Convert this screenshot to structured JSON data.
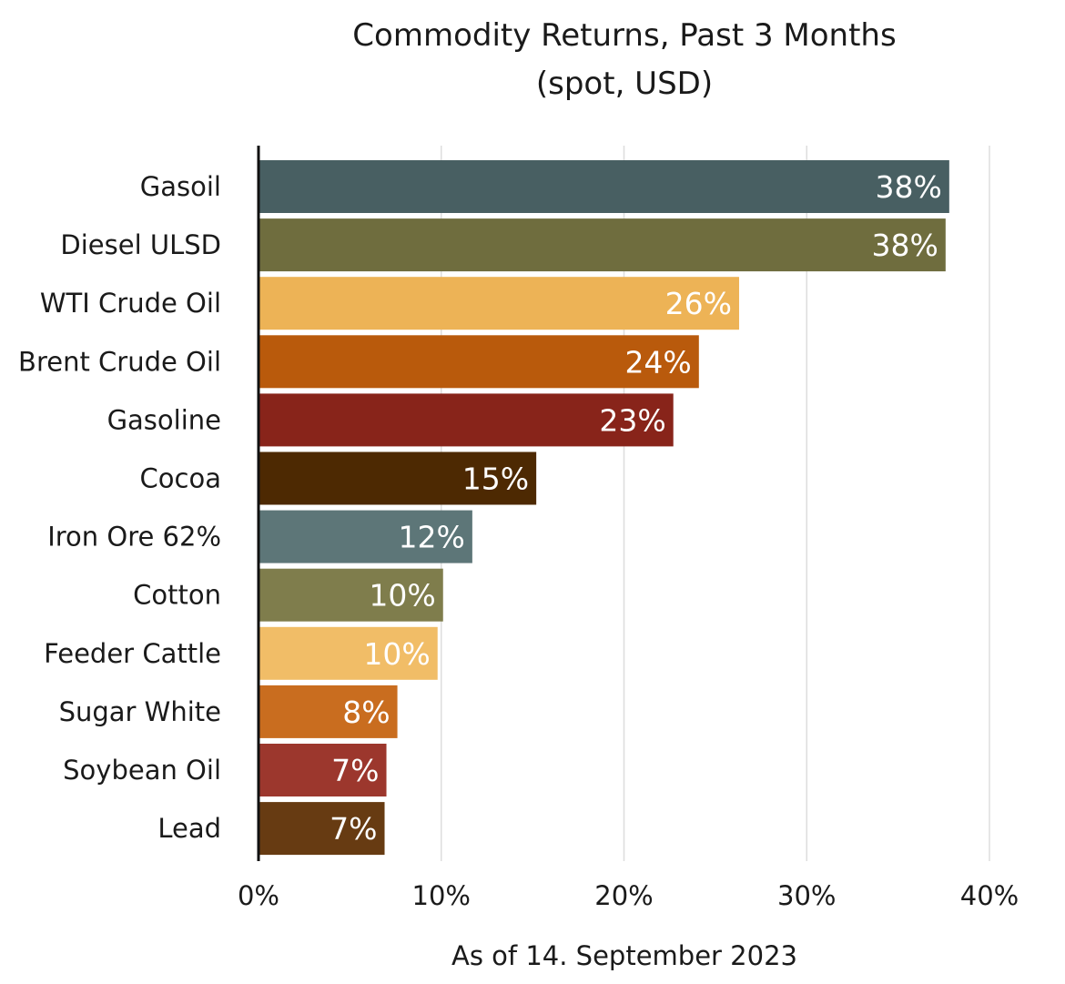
{
  "chart_data": {
    "type": "bar",
    "orientation": "horizontal",
    "title": "Commodity Returns, Past 3 Months",
    "subtitle": "(spot, USD)",
    "xlabel": "As of 14. September 2023",
    "xlim": [
      0,
      40
    ],
    "x_ticks": [
      0,
      10,
      20,
      30,
      40
    ],
    "x_tick_labels": [
      "0%",
      "10%",
      "20%",
      "30%",
      "40%"
    ],
    "grid": "vertical",
    "categories": [
      "Gasoil",
      "Diesel ULSD",
      "WTI Crude Oil",
      "Brent Crude Oil",
      "Gasoline",
      "Cocoa",
      "Iron Ore 62%",
      "Cotton",
      "Feeder Cattle",
      "Sugar White",
      "Soybean Oil",
      "Lead"
    ],
    "values": [
      37.8,
      37.6,
      26.3,
      24.1,
      22.7,
      15.2,
      11.7,
      10.1,
      9.8,
      7.6,
      7.0,
      6.9
    ],
    "value_labels": [
      "38%",
      "38%",
      "26%",
      "24%",
      "23%",
      "15%",
      "12%",
      "10%",
      "10%",
      "8%",
      "7%",
      "7%"
    ],
    "colors": [
      "#485f62",
      "#6f6d3e",
      "#edb356",
      "#b95a0c",
      "#88241a",
      "#4d2902",
      "#5d7678",
      "#7f7d4c",
      "#f1bd67",
      "#c96d1f",
      "#9c372d",
      "#673b12"
    ]
  }
}
